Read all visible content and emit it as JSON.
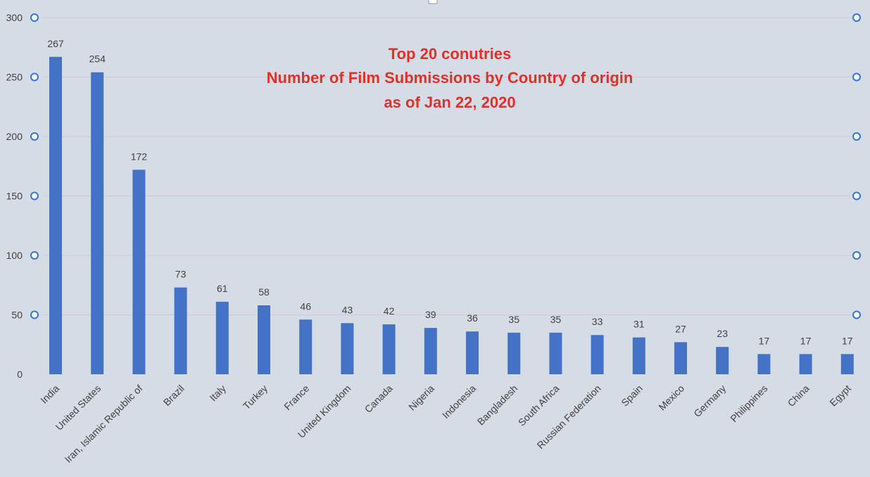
{
  "chart_data": {
    "type": "bar",
    "title_lines": [
      "Top 20 conutries",
      "Number of Film Submissions by Country of origin",
      "as of Jan 22, 2020"
    ],
    "categories": [
      "India",
      "United States",
      "Iran, Islamic Republic of",
      "Brazil",
      "Italy",
      "Turkey",
      "France",
      "United Kingdom",
      "Canada",
      "Nigeria",
      "Indonesia",
      "Bangladesh",
      "South Africa",
      "Russian Federation",
      "Spain",
      "Mexico",
      "Germany",
      "Philippines",
      "China",
      "Egypt"
    ],
    "values": [
      267,
      254,
      172,
      73,
      61,
      58,
      46,
      43,
      42,
      39,
      36,
      35,
      35,
      33,
      31,
      27,
      23,
      17,
      17,
      17
    ],
    "ylim": [
      0,
      300
    ],
    "yticks": [
      0,
      50,
      100,
      150,
      200,
      250,
      300
    ],
    "grid": true,
    "legend": "none",
    "bar_color": "#4472c4",
    "title_color": "#e0302a"
  },
  "colors": {
    "background": "#d6dce5",
    "gridline": "#c8cdd6",
    "handle_stroke": "#2f75d6"
  }
}
